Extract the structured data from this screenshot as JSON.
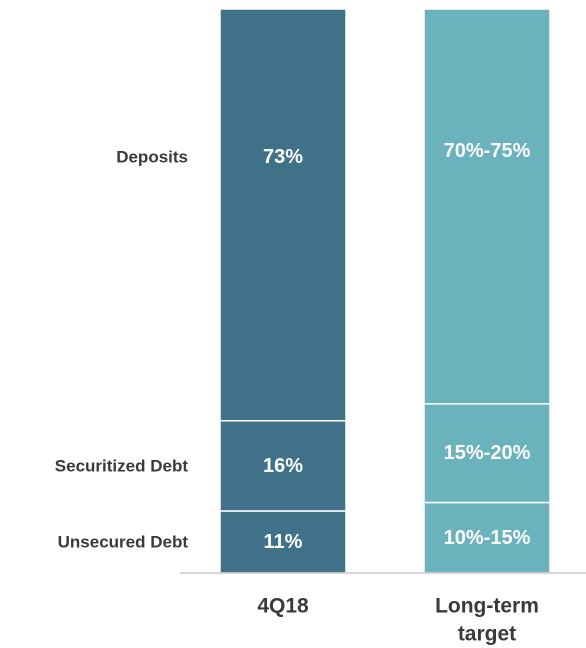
{
  "chart_data": {
    "type": "bar",
    "stacked": true,
    "categories": [
      {
        "id": "4q18",
        "lines": [
          "4Q18"
        ],
        "color": "#3f7289"
      },
      {
        "id": "target",
        "lines": [
          "Long-term",
          "target"
        ],
        "color": "#6ab3bc"
      }
    ],
    "series": [
      {
        "name": "Unsecured Debt",
        "values": [
          11,
          12.5
        ],
        "labels": [
          "11%",
          "10%-15%"
        ]
      },
      {
        "name": "Securitized Debt",
        "values": [
          16,
          17.5
        ],
        "labels": [
          "16%",
          "15%-20%"
        ]
      },
      {
        "name": "Deposits",
        "values": [
          73,
          70
        ],
        "labels": [
          "73%",
          "70%-75%"
        ]
      }
    ],
    "ylim": [
      0,
      100
    ],
    "grid": false,
    "legend": "left"
  }
}
